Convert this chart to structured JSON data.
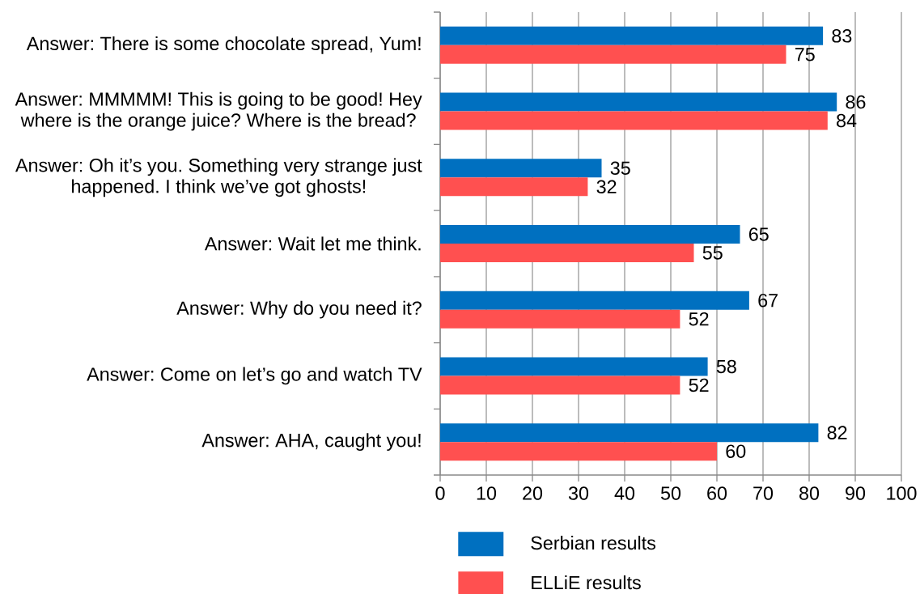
{
  "chart_data": {
    "type": "bar",
    "orientation": "horizontal",
    "categories": [
      "Answer: There is some chocolate spread, Yum!",
      "Answer: MMMMM! This is going to be good! Hey where is the orange juice? Where is the bread?",
      "Answer: Oh it’s you. Something very strange just happened. I think we’ve got ghosts!",
      "Answer: Wait let me think.",
      "Answer: Why do you need it?",
      "Answer: Come on let’s go and watch TV",
      "Answer: AHA, caught you!"
    ],
    "series": [
      {
        "name": "Serbian results",
        "color": "#0070c0",
        "values": [
          83,
          86,
          35,
          65,
          67,
          58,
          82
        ]
      },
      {
        "name": "ELLiE results",
        "color": "#ff5050",
        "values": [
          75,
          84,
          32,
          55,
          52,
          52,
          60
        ]
      }
    ],
    "xlim": [
      0,
      100
    ],
    "xticks": [
      0,
      10,
      20,
      30,
      40,
      50,
      60,
      70,
      80,
      90,
      100
    ],
    "grid": "x",
    "legend": "bottom",
    "data_labels": true
  }
}
